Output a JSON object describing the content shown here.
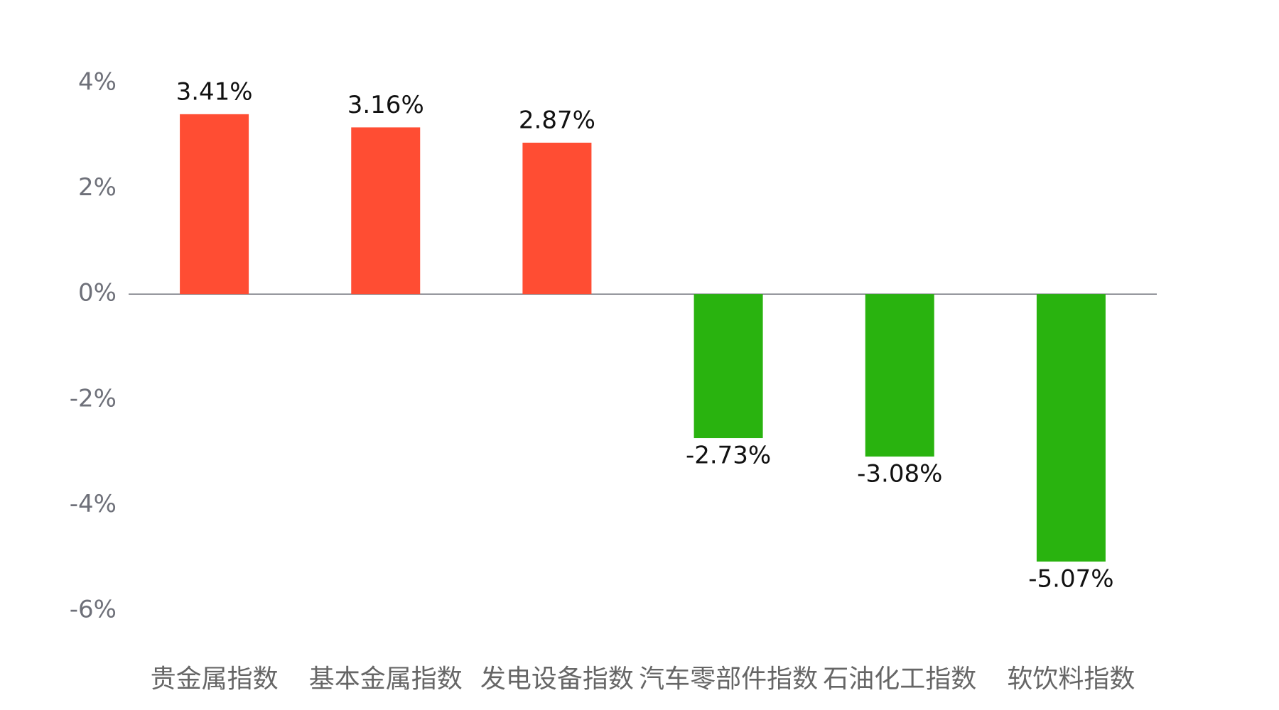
{
  "chart_data": {
    "type": "bar",
    "categories": [
      "贵金属指数",
      "基本金属指数",
      "发电设备指数",
      "汽车零部件指数",
      "石油化工指数",
      "软饮料指数"
    ],
    "values": [
      3.41,
      3.16,
      2.87,
      -2.73,
      -3.08,
      -5.07
    ],
    "value_labels": [
      "3.41%",
      "3.16%",
      "2.87%",
      "-2.73%",
      "-3.08%",
      "-5.07%"
    ],
    "positive_color": "#ff4d33",
    "negative_color": "#29b30f",
    "ylim": [
      -6,
      4
    ],
    "yticks": [
      {
        "value": 4,
        "label": "4%"
      },
      {
        "value": 2,
        "label": "2%"
      },
      {
        "value": 0,
        "label": "0%"
      },
      {
        "value": -2,
        "label": "-2%"
      },
      {
        "value": -4,
        "label": "-4%"
      },
      {
        "value": -6,
        "label": "-6%"
      }
    ]
  }
}
